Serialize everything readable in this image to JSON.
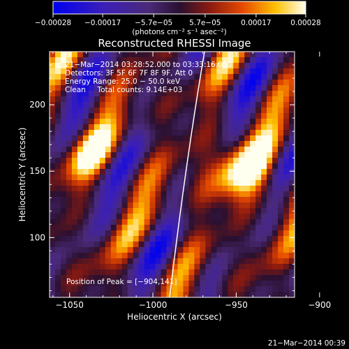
{
  "chart_data": {
    "type": "heatmap",
    "title": "Reconstructed RHESSI Image",
    "xlabel": "Heliocentric X (arcsec)",
    "ylabel": "Heliocentric Y (arcsec)",
    "xlim": [
      -1062,
      -915
    ],
    "ylim": [
      55,
      240
    ],
    "xticks": [
      -1050,
      -1000,
      -950,
      -900
    ],
    "xtick_labels": [
      "−1050",
      "−1000",
      "−950",
      "−900"
    ],
    "yticks": [
      100,
      150,
      200
    ],
    "ytick_labels": [
      "100",
      "150",
      "200"
    ],
    "colorbar": {
      "range": [
        -0.00028,
        0.00028
      ],
      "ticks": [
        -0.00028,
        -0.00017,
        -5.7e-05,
        5.7e-05,
        0.00017,
        0.00028
      ],
      "tick_labels": [
        "−0.00028",
        "−0.00017",
        "−5.7e−05",
        "5.7e−05",
        "0.00017",
        "0.00028"
      ],
      "unit": "(photons cm⁻² s⁻¹ asec⁻²)"
    },
    "annotations": [
      "21−Mar−2014 03:28:52.000 to 03:33:16.000",
      "Detectors: 3F 5F 6F 7F 8F 9F, Att 0",
      "Energy Range: 25.0 − 50.0 keV",
      "Clean     Total counts: 9.14E+03"
    ],
    "peak_label": "Position of Peak = [−904,141]",
    "peak": [
      -904,
      141
    ],
    "grid": false,
    "legend": "colorbar top"
  },
  "footer": {
    "timestamp": "21−Mar−2014 00:39"
  },
  "colors": {
    "background": "#000000",
    "frame": "#ffffff"
  }
}
